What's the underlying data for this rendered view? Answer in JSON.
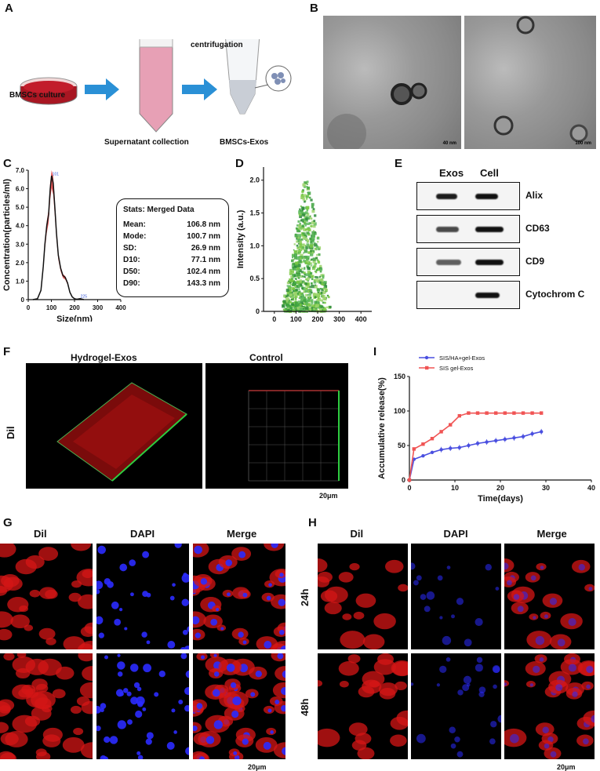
{
  "panels": {
    "a": "A",
    "b": "B",
    "c": "C",
    "d": "D",
    "e": "E",
    "f": "F",
    "g": "G",
    "h": "H",
    "i": "I"
  },
  "panel_a": {
    "culture": "BMSCs culture",
    "centrifugation": "centrifugation",
    "supernatant": "Supernatant collection",
    "exos": "BMSCs-Exos"
  },
  "panel_b": {
    "scale_left": "40 nm",
    "scale_right": "100 nm"
  },
  "panel_c": {
    "stats_title": "Stats: Merged Data",
    "stats": [
      {
        "k": "Mean:",
        "v": "106.8 nm"
      },
      {
        "k": "Mode:",
        "v": "100.7 nm"
      },
      {
        "k": "SD:",
        "v": "26.9 nm"
      },
      {
        "k": "D10:",
        "v": "77.1 nm"
      },
      {
        "k": "D50:",
        "v": "102.4 nm"
      },
      {
        "k": "D90:",
        "v": "143.3 nm"
      }
    ],
    "peak_label": "101",
    "tail_label": "225"
  },
  "panel_e": {
    "col_exos": "Exos",
    "col_cell": "Cell",
    "rows": [
      "Alix",
      "CD63",
      "CD9",
      "Cytochrom C"
    ]
  },
  "panel_f": {
    "hydrogel": "Hydrogel-Exos",
    "control": "Control",
    "row": "Dil",
    "scale": "20μm"
  },
  "panel_gh": {
    "cols": [
      "Dil",
      "DAPI",
      "Merge"
    ],
    "rows": [
      "24h",
      "48h"
    ],
    "scale": "20μm"
  },
  "chart_data": [
    {
      "type": "line",
      "xlabel": "Size(nm)",
      "ylabel": "Concentration(particles/ml)",
      "xlim": [
        0,
        400
      ],
      "ylim": [
        0,
        7
      ],
      "xticks": [
        "0",
        "100",
        "200",
        "300",
        "400"
      ],
      "yticks": [
        "0",
        "1.0",
        "2.0",
        "3.0",
        "4.0",
        "5.0",
        "6.0",
        "7.0"
      ],
      "x": [
        20,
        40,
        55,
        65,
        72,
        80,
        88,
        95,
        101,
        108,
        115,
        122,
        130,
        140,
        150,
        160,
        170,
        180,
        190,
        200,
        210,
        225,
        240
      ],
      "y": [
        0,
        0.05,
        0.5,
        1.8,
        3.0,
        4.0,
        4.6,
        6.0,
        6.7,
        6.3,
        5.0,
        3.6,
        2.4,
        1.7,
        1.3,
        1.2,
        0.9,
        0.4,
        0.15,
        0.05,
        0.02,
        0.05,
        0
      ]
    },
    {
      "type": "scatter",
      "xlabel": "Size (nm)",
      "ylabel": "Intensity (a.u.)",
      "xlim": [
        -50,
        450
      ],
      "ylim": [
        0,
        2.2
      ],
      "xticks": [
        "0",
        "100",
        "200",
        "300",
        "400"
      ],
      "yticks": [
        "0",
        "0.5",
        "1.0",
        "1.5",
        "2.0"
      ]
    },
    {
      "type": "line",
      "xlabel": "Time(days)",
      "ylabel": "Accumulative release(%)",
      "xlim": [
        0,
        40
      ],
      "ylim": [
        0,
        150
      ],
      "xticks": [
        "0",
        "10",
        "20",
        "30",
        "40"
      ],
      "yticks": [
        "0",
        "50",
        "100",
        "150"
      ],
      "legend": "top-left",
      "series": [
        {
          "name": "SIS/HA+gel-Exos",
          "color": "#4a4fe0",
          "x": [
            0,
            1,
            3,
            5,
            7,
            9,
            11,
            13,
            15,
            17,
            19,
            21,
            23,
            25,
            27,
            29
          ],
          "y": [
            0,
            30,
            35,
            40,
            44,
            46,
            47,
            50,
            53,
            55,
            57,
            59,
            61,
            63,
            67,
            70
          ]
        },
        {
          "name": "SIS gel-Exos",
          "color": "#f05454",
          "x": [
            0,
            1,
            3,
            5,
            7,
            9,
            11,
            13,
            15,
            17,
            19,
            21,
            23,
            25,
            27,
            29
          ],
          "y": [
            0,
            45,
            52,
            60,
            70,
            80,
            93,
            97,
            97,
            97,
            97,
            97,
            97,
            97,
            97,
            97
          ]
        }
      ]
    }
  ]
}
